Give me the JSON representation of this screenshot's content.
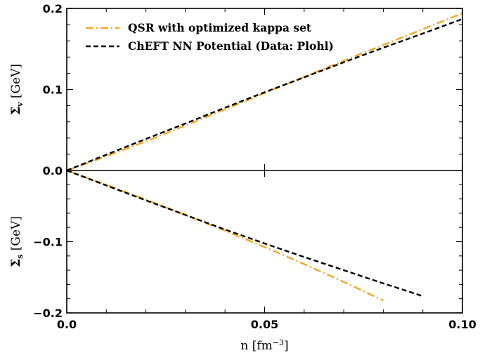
{
  "chart_data": {
    "type": "line",
    "xlabel": "n [fm",
    "xlabel_sup": "−3",
    "xlabel_end": "]",
    "xlim": [
      0,
      0.1
    ],
    "x_ticks": [
      {
        "value": 0.0,
        "label": "0.0"
      },
      {
        "value": 0.05,
        "label": "0.05"
      },
      {
        "value": 0.1,
        "label": "0.10"
      }
    ],
    "panels": [
      {
        "id": "upper",
        "ylabel": "Σ",
        "ylabel_sub": "v",
        "ylabel_unit": " [GeV]",
        "ylim": [
          0,
          0.2
        ],
        "y_ticks": [
          {
            "value": 0.2,
            "label": "0.2"
          },
          {
            "value": 0.1,
            "label": "0.1"
          },
          {
            "value": 0.0,
            "label": "0.0"
          }
        ],
        "series": [
          {
            "name": "QSR with optimized kappa set",
            "color": "#f5a623",
            "dash": "dashdot",
            "x": [
              0,
              0.01,
              0.02,
              0.03,
              0.04,
              0.05,
              0.06,
              0.07,
              0.08,
              0.09,
              0.1
            ],
            "y": [
              0,
              0.0175,
              0.036,
              0.0555,
              0.0755,
              0.0955,
              0.1155,
              0.1355,
              0.155,
              0.1745,
              0.194
            ]
          },
          {
            "name": "ChEFT NN Potential (Data: Plohl)",
            "color": "#000000",
            "dash": "dashed",
            "x": [
              0,
              0.01,
              0.02,
              0.03,
              0.04,
              0.05,
              0.06,
              0.07,
              0.08,
              0.09,
              0.1
            ],
            "y": [
              0,
              0.0195,
              0.039,
              0.058,
              0.0775,
              0.0965,
              0.115,
              0.1335,
              0.1515,
              0.169,
              0.187
            ]
          }
        ]
      },
      {
        "id": "lower",
        "ylabel": "Σ",
        "ylabel_sub": "s",
        "ylabel_unit": " [GeV]",
        "ylim": [
          -0.2,
          0
        ],
        "y_ticks": [
          {
            "value": -0.1,
            "label": "−0.1"
          },
          {
            "value": -0.2,
            "label": "−0.2"
          }
        ],
        "series": [
          {
            "name": "QSR with optimized kappa set",
            "color": "#f5a623",
            "dash": "dashdot",
            "x": [
              0,
              0.01,
              0.02,
              0.03,
              0.04,
              0.05,
              0.06,
              0.07,
              0.08
            ],
            "y": [
              0,
              -0.02,
              -0.041,
              -0.0625,
              -0.0845,
              -0.1075,
              -0.1315,
              -0.1565,
              -0.1825
            ]
          },
          {
            "name": "ChEFT NN Potential (Data: Plohl)",
            "color": "#000000",
            "dash": "dashed",
            "x": [
              0,
              0.01,
              0.02,
              0.03,
              0.04,
              0.05,
              0.06,
              0.07,
              0.08,
              0.09
            ],
            "y": [
              0,
              -0.021,
              -0.042,
              -0.0625,
              -0.083,
              -0.1025,
              -0.1215,
              -0.14,
              -0.1585,
              -0.1765
            ]
          }
        ]
      }
    ],
    "legend": {
      "placement": "top-left",
      "entries": [
        {
          "label": "QSR with optimized kappa set",
          "color": "#f5a623",
          "dash": "dashdot"
        },
        {
          "label": "ChEFT NN Potential (Data: Plohl)",
          "color": "#000000",
          "dash": "dashed"
        }
      ]
    }
  }
}
